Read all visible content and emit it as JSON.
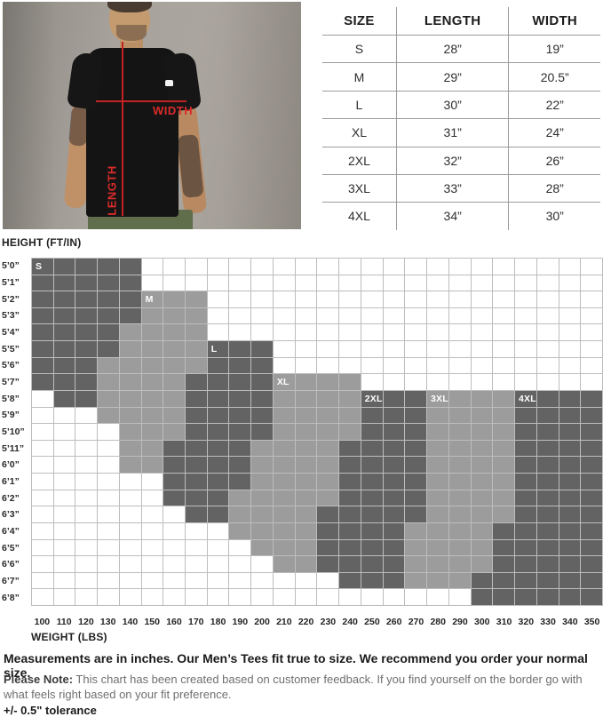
{
  "photo": {
    "width_label": "WIDTH",
    "length_label": "LENGTH"
  },
  "size_table": {
    "headers": [
      "SIZE",
      "LENGTH",
      "WIDTH"
    ],
    "rows": [
      [
        "S",
        "28”",
        "19”"
      ],
      [
        "M",
        "29”",
        "20.5”"
      ],
      [
        "L",
        "30”",
        "22”"
      ],
      [
        "XL",
        "31”",
        "24”"
      ],
      [
        "2XL",
        "32”",
        "26”"
      ],
      [
        "3XL",
        "33”",
        "28”"
      ],
      [
        "4XL",
        "34”",
        "30”"
      ]
    ]
  },
  "chart_data": {
    "type": "heatmap",
    "title": "",
    "ylabel": "HEIGHT (FT/IN)",
    "xlabel": "WEIGHT (LBS)",
    "y_ticks": [
      "5’0”",
      "5’1”",
      "5’2”",
      "5’3”",
      "5’4”",
      "5’5”",
      "5’6”",
      "5’7”",
      "5’8”",
      "5’9”",
      "5’10”",
      "5’11”",
      "6’0”",
      "6’1”",
      "6’2”",
      "6’3”",
      "6’4”",
      "6’5”",
      "6’6”",
      "6’7”",
      "6’8”"
    ],
    "x_ticks": [
      "100",
      "110",
      "120",
      "130",
      "140",
      "150",
      "160",
      "170",
      "180",
      "190",
      "200",
      "210",
      "220",
      "230",
      "240",
      "250",
      "260",
      "270",
      "280",
      "290",
      "300",
      "310",
      "320",
      "330",
      "340",
      "350"
    ],
    "legend": {
      "W": "no fit / empty",
      "M": "medium gray size band",
      "D": "dark gray size band"
    },
    "cells": [
      "DDDDDWWWWWWWWWWWWWWWWWWWWW",
      "DDDDDWWWWWWWWWWWWWWWWWWWWW",
      "DDDDDMMMWWWWWWWWWWWWWWWWWW",
      "DDDDDMMMWWWWWWWWWWWWWWWWWW",
      "DDDDMMMMWWWWWWWWWWWWWWWWWW",
      "DDDDMMMMDDDWWWWWWWWWWWWWWW",
      "DDDMMMMMDDDWWWWWWWWWWWWWWW",
      "DDDMMMMDDDDMMMMWWWWWWWWWWW",
      "WDDMMMMDDDDMMMMDDDMMMMDDDD",
      "WWWMMMMDDDDMMMMDDDMMMMDDDD",
      "WWWWMMMDDDDMMMMDDDMMMMDDDD",
      "WWWWMMDDDDMMMMDDDDMMMMDDDD",
      "WWWWMMDDDDMMMMDDDDMMMMDDDD",
      "WWWWWWDDDDMMMMDDDDMMMMDDDD",
      "WWWWWWDDDMMMMMDDDDMMMMDDDD",
      "WWWWWWWDDMMMMDDDDDMMMMDDDD",
      "WWWWWWWWWMMMMDDDDMMMMDDDDD",
      "WWWWWWWWWWMMMDDDDMMMMDDDDD",
      "WWWWWWWWWWWMMDDDDMMMMDDDDD",
      "WWWWWWWWWWWWWWDDDMMMDDDDDD",
      "WWWWWWWWWWWWWWWWWWWWDDDDDD"
    ],
    "size_labels": [
      {
        "label": "S",
        "row": 0,
        "col": 0
      },
      {
        "label": "M",
        "row": 2,
        "col": 5
      },
      {
        "label": "L",
        "row": 5,
        "col": 8
      },
      {
        "label": "XL",
        "row": 7,
        "col": 11
      },
      {
        "label": "2XL",
        "row": 8,
        "col": 15
      },
      {
        "label": "3XL",
        "row": 8,
        "col": 18
      },
      {
        "label": "4XL",
        "row": 8,
        "col": 22
      }
    ]
  },
  "notes": {
    "line1": "Measurements are in inches. Our Men’s Tees fit true to size. We recommend you order your normal size.",
    "note_label": "Please Note:",
    "note_text": " This chart has been created based on customer feedback. If you find yourself on the border go with what feels right based on your fit preference.",
    "tolerance": "+/- 0.5\" tolerance"
  },
  "colors": {
    "dark_cell": "#636363",
    "medium_cell": "#9c9c9c",
    "grid_line": "#bdbdbd",
    "measure_red": "#c32222",
    "tee_black": "#141414",
    "pants_olive": "#606e4b"
  }
}
